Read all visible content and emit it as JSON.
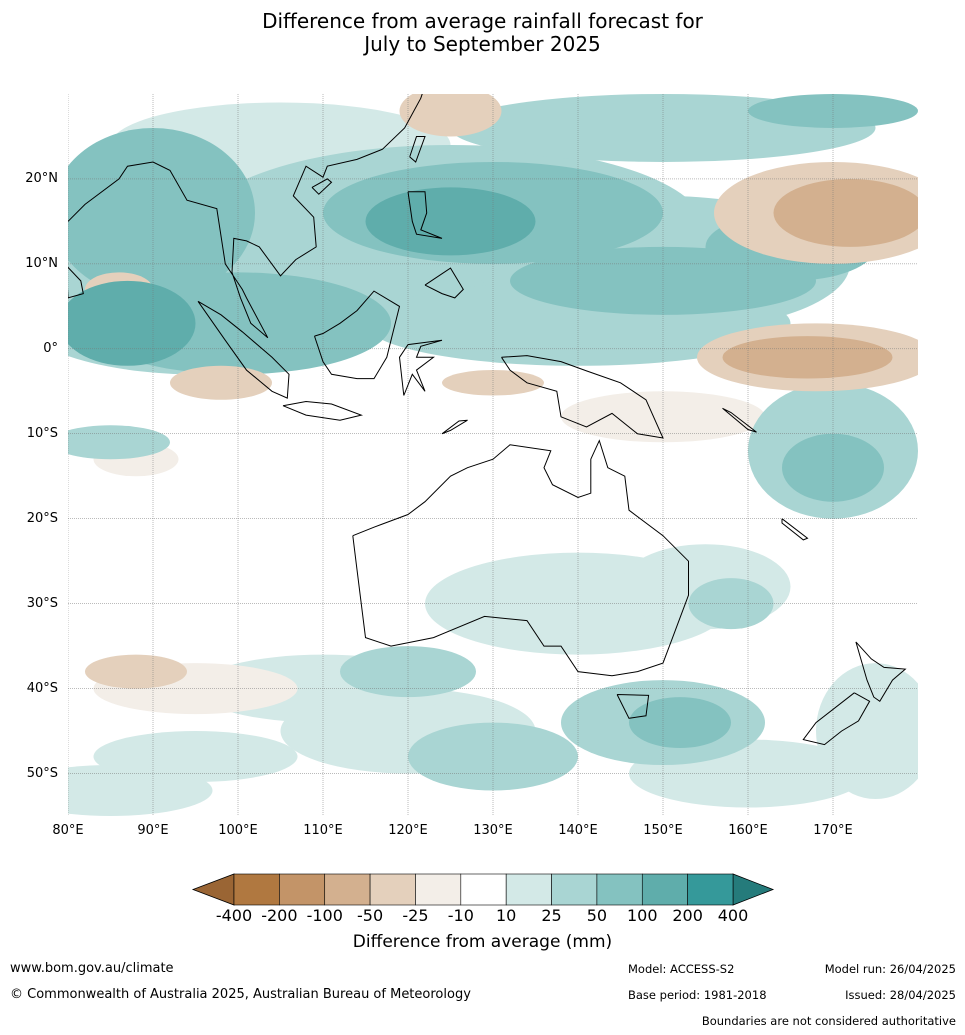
{
  "title": {
    "line1": "Difference from average rainfall forecast for",
    "line2": "July to September 2025"
  },
  "map": {
    "extent": {
      "lon_min": 80,
      "lon_max": 180,
      "lat_min": -55,
      "lat_max": 30
    },
    "lat_labels": [
      "20°N",
      "10°N",
      "0°",
      "10°S",
      "20°S",
      "30°S",
      "40°S",
      "50°S"
    ],
    "lat_values": [
      20,
      10,
      0,
      -10,
      -20,
      -30,
      -40,
      -50
    ],
    "lon_labels": [
      "80°E",
      "90°E",
      "100°E",
      "110°E",
      "120°E",
      "130°E",
      "140°E",
      "150°E",
      "160°E",
      "170°E"
    ],
    "lon_values": [
      80,
      90,
      100,
      110,
      120,
      130,
      140,
      150,
      160,
      170
    ]
  },
  "colorbar": {
    "title": "Difference from average (mm)",
    "ticks": [
      "-400",
      "-200",
      "-100",
      "-50",
      "-25",
      "-10",
      "10",
      "25",
      "50",
      "100",
      "200",
      "400"
    ],
    "colors": [
      "#b07840",
      "#c39468",
      "#d3b08f",
      "#e4d0bc",
      "#f3eee8",
      "#ffffff",
      "#d3e9e7",
      "#a9d5d3",
      "#84c2c0",
      "#5fadab",
      "#35999a"
    ],
    "extend_low_color": "#9a6534",
    "extend_high_color": "#257b7b"
  },
  "footer": {
    "website": "www.bom.gov.au/climate",
    "copyright": "© Commonwealth of Australia 2025, Australian Bureau of Meteorology",
    "model": "Model: ACCESS-S2",
    "base_period": "Base period: 1981-2018",
    "model_run": "Model run: 26/04/2025",
    "issued": "Issued: 28/04/2025",
    "disclaimer": "Boundaries are not considered authoritative"
  }
}
